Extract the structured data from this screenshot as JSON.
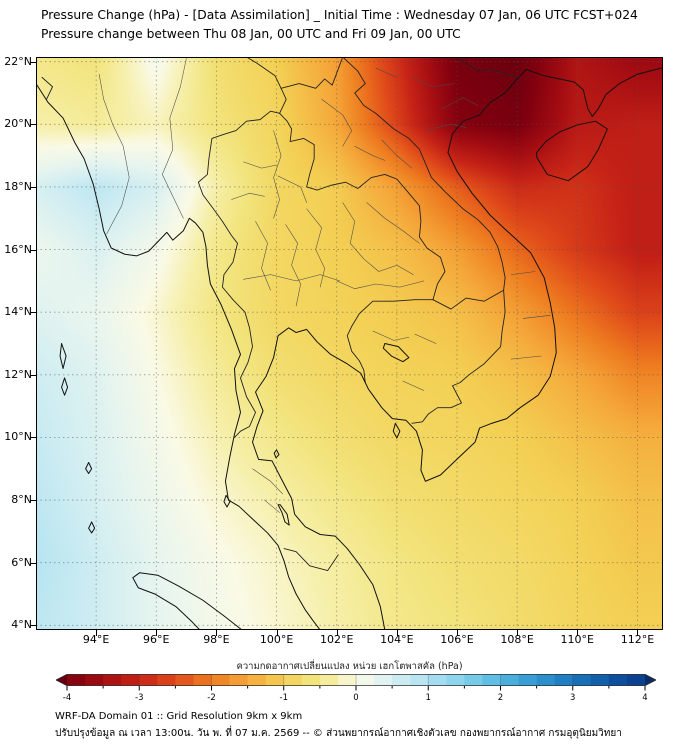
{
  "title": {
    "line1": "Pressure Change (hPa) - [Data Assimilation] _ Initial Time : Wednesday 07 Jan, 06 UTC FCST+024",
    "line2": "Pressure change between Thu 08 Jan, 00 UTC and Fri 09 Jan, 00 UTC"
  },
  "map": {
    "lat_tick_labels": [
      "22°N",
      "20°N",
      "18°N",
      "16°N",
      "14°N",
      "12°N",
      "10°N",
      "8°N",
      "6°N",
      "4°N"
    ],
    "lat_tick_values": [
      22,
      20,
      18,
      16,
      14,
      12,
      10,
      8,
      6,
      4
    ],
    "lon_tick_labels": [
      "94°E",
      "96°E",
      "98°E",
      "100°E",
      "102°E",
      "104°E",
      "106°E",
      "108°E",
      "110°E",
      "112°E"
    ],
    "lon_tick_values": [
      94,
      96,
      98,
      100,
      102,
      104,
      106,
      108,
      110,
      112
    ]
  },
  "chart_data": {
    "type": "heatmap",
    "title": "Pressure Change (hPa)",
    "units": "hPa",
    "value_range": [
      -4,
      4
    ],
    "extent": {
      "lon_min": 92.0,
      "lon_max": 112.85,
      "lat_min": 3.85,
      "lat_max": 22.15
    },
    "grid": {
      "lon_start": 92,
      "lon_step": 2,
      "lat_start": 22,
      "lat_step": -2,
      "values": [
        [
          -0.5,
          -0.6,
          0.1,
          -0.7,
          -1.0,
          -1.6,
          -2.8,
          -4.1,
          -4.3,
          -3.3,
          -3.6
        ],
        [
          -0.3,
          -0.4,
          -0.2,
          -0.6,
          -0.9,
          -1.5,
          -2.6,
          -3.9,
          -4.1,
          -3.2,
          -3.1
        ],
        [
          0.5,
          0.8,
          0.5,
          -0.3,
          -0.85,
          -1.05,
          -1.6,
          -2.3,
          -2.9,
          -2.8,
          -3.1
        ],
        [
          0.2,
          0.45,
          0.1,
          -0.5,
          -0.85,
          -1.0,
          -1.2,
          -1.6,
          -2.2,
          -2.7,
          -3.1
        ],
        [
          0.4,
          0.25,
          -0.1,
          -0.55,
          -0.85,
          -0.95,
          -1.05,
          -1.2,
          -1.6,
          -2.1,
          -2.6
        ],
        [
          0.6,
          0.4,
          0.0,
          -0.4,
          -0.7,
          -0.85,
          -0.95,
          -1.0,
          -1.2,
          -1.5,
          -1.9
        ],
        [
          0.7,
          0.45,
          0.1,
          -0.25,
          -0.5,
          -0.7,
          -0.85,
          -0.9,
          -1.0,
          -1.2,
          -1.4
        ],
        [
          0.8,
          0.5,
          0.2,
          -0.1,
          -0.3,
          -0.5,
          -0.7,
          -0.8,
          -0.9,
          -1.0,
          -1.2
        ],
        [
          0.9,
          0.6,
          0.3,
          0.05,
          -0.15,
          -0.35,
          -0.55,
          -0.7,
          -0.8,
          -0.95,
          -1.1
        ],
        [
          0.8,
          0.6,
          0.3,
          0.1,
          -0.1,
          -0.3,
          -0.5,
          -0.6,
          -0.75,
          -0.9,
          -1.0
        ]
      ]
    },
    "colormap_stops": [
      [
        -4.5,
        "#60000e"
      ],
      [
        -4.0,
        "#7f000f"
      ],
      [
        -3.5,
        "#a40d12"
      ],
      [
        -3.0,
        "#c62317"
      ],
      [
        -2.5,
        "#e04a1a"
      ],
      [
        -2.0,
        "#ee7c20"
      ],
      [
        -1.5,
        "#f5a83a"
      ],
      [
        -1.0,
        "#f3d054"
      ],
      [
        -0.6,
        "#f2e47c"
      ],
      [
        -0.3,
        "#f6efa8"
      ],
      [
        0.0,
        "#fafae6"
      ],
      [
        0.3,
        "#e7f5ef"
      ],
      [
        0.6,
        "#cfedf2"
      ],
      [
        1.0,
        "#aee1f0"
      ],
      [
        1.5,
        "#82cfea"
      ],
      [
        2.0,
        "#54b7e1"
      ],
      [
        2.5,
        "#2f98d1"
      ],
      [
        3.0,
        "#1b77bd"
      ],
      [
        3.5,
        "#0e55a2"
      ],
      [
        4.0,
        "#093c8a"
      ],
      [
        4.5,
        "#072c66"
      ]
    ]
  },
  "colorbar": {
    "label": "ความกดอากาศเปลี่ยนแปลง หน่วย เฮกโตพาสคัล (hPa)",
    "tick_labels": [
      "-4",
      "-3",
      "-2",
      "-1",
      "0",
      "1",
      "2",
      "3",
      "4"
    ],
    "tick_values": [
      -4,
      -3,
      -2,
      -1,
      0,
      1,
      2,
      3,
      4
    ]
  },
  "footer": {
    "line1": "WRF-DA Domain 01 :: Grid Resolution 9km x 9km",
    "line2": "ปรับปรุงข้อมูล ณ เวลา 13:00น. วัน พ. ที่ 07 ม.ค. 2569 -- © ส่วนพยากรณ์อากาศเชิงตัวเลข กองพยากรณ์อากาศ กรมอุตุนิยมวิทยา"
  }
}
